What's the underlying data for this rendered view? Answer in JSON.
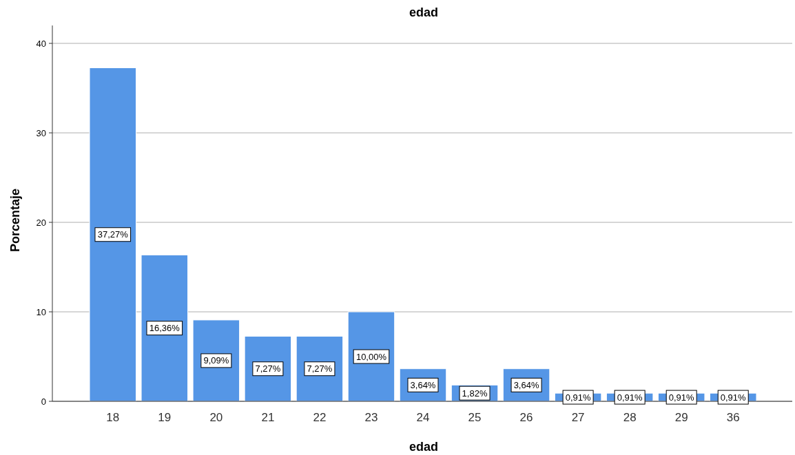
{
  "chart_data": {
    "type": "bar",
    "title": "edad",
    "xlabel": "edad",
    "ylabel": "Porcentaje",
    "categories": [
      "18",
      "19",
      "20",
      "21",
      "22",
      "23",
      "24",
      "25",
      "26",
      "27",
      "28",
      "29",
      "36"
    ],
    "values": [
      37.27,
      16.36,
      9.09,
      7.27,
      7.27,
      10.0,
      3.64,
      1.82,
      3.64,
      0.91,
      0.91,
      0.91,
      0.91
    ],
    "value_labels": [
      "37,27%",
      "16,36%",
      "9,09%",
      "7,27%",
      "7,27%",
      "10,00%",
      "3,64%",
      "1,82%",
      "3,64%",
      "0,91%",
      "0,91%",
      "0,91%",
      "0,91%"
    ],
    "color": "#5596e6",
    "ylim": [
      0,
      42
    ],
    "yticks": [
      0,
      10,
      20,
      30,
      40
    ],
    "grid": "y"
  }
}
